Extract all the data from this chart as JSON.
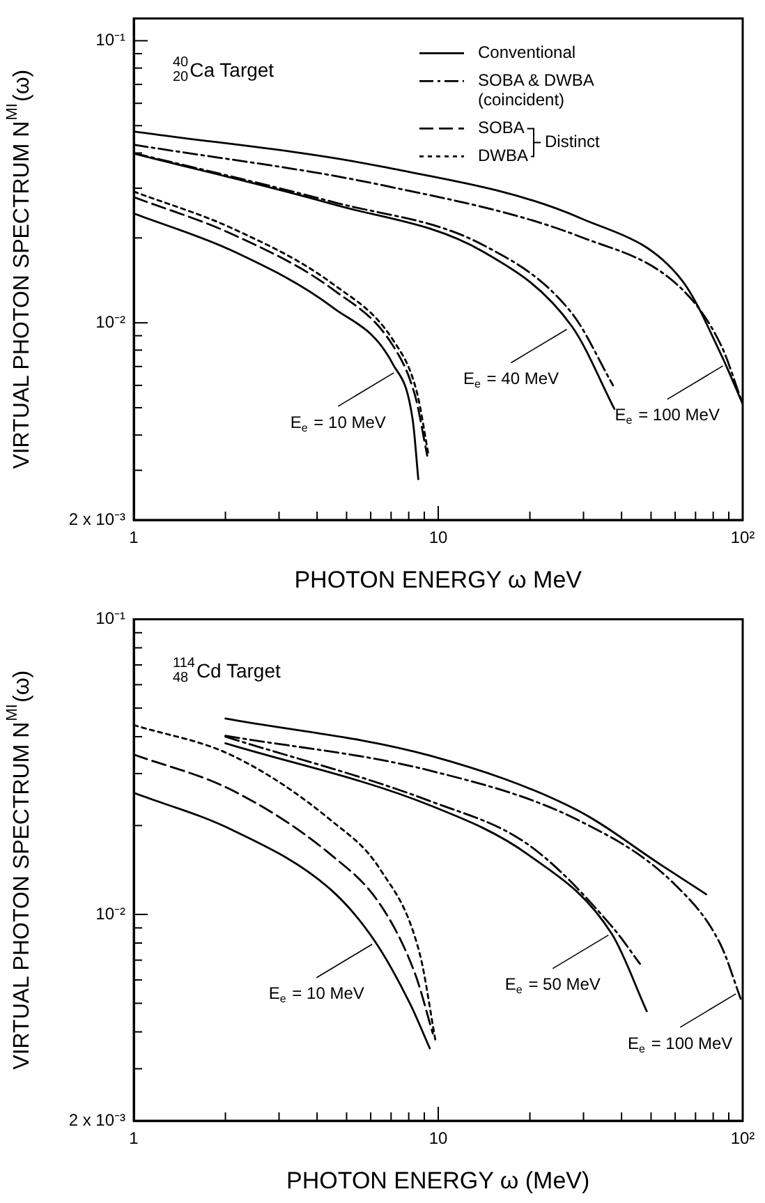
{
  "chart_data": [
    {
      "type": "line",
      "title": "$^{40}$$_{20}$Ca Target",
      "xlabel": "PHOTON ENERGY ω MeV",
      "ylabel": "VIRTUAL PHOTON SPECTRUM N$^{MI}$(ω)",
      "log": "xy",
      "grid": false,
      "legend": "top right",
      "xlim": [
        1,
        100
      ],
      "ylim": [
        0.002,
        0.12
      ],
      "xticks": [
        {
          "value": 1,
          "label": "1"
        },
        {
          "value": 2,
          "label": null
        },
        {
          "value": 3,
          "label": null
        },
        {
          "value": 4,
          "label": null
        },
        {
          "value": 5,
          "label": null
        },
        {
          "value": 6,
          "label": null
        },
        {
          "value": 7,
          "label": null
        },
        {
          "value": 8,
          "label": null
        },
        {
          "value": 9,
          "label": null
        },
        {
          "value": 10,
          "label": "10"
        },
        {
          "value": 20,
          "label": null
        },
        {
          "value": 30,
          "label": null
        },
        {
          "value": 40,
          "label": null
        },
        {
          "value": 50,
          "label": null
        },
        {
          "value": 60,
          "label": null
        },
        {
          "value": 70,
          "label": null
        },
        {
          "value": 80,
          "label": null
        },
        {
          "value": 90,
          "label": null
        },
        {
          "value": 100,
          "label": "10²"
        }
      ],
      "yticks": [
        {
          "value": 0.002,
          "label": "2 x 10⁻³"
        },
        {
          "value": 0.003,
          "label": null
        },
        {
          "value": 0.004,
          "label": null
        },
        {
          "value": 0.005,
          "label": null
        },
        {
          "value": 0.006,
          "label": null
        },
        {
          "value": 0.007,
          "label": null
        },
        {
          "value": 0.008,
          "label": null
        },
        {
          "value": 0.009,
          "label": null
        },
        {
          "value": 0.01,
          "label": "10⁻²"
        },
        {
          "value": 0.02,
          "label": null
        },
        {
          "value": 0.03,
          "label": null
        },
        {
          "value": 0.04,
          "label": null
        },
        {
          "value": 0.05,
          "label": null
        },
        {
          "value": 0.06,
          "label": null
        },
        {
          "value": 0.07,
          "label": null
        },
        {
          "value": 0.08,
          "label": null
        },
        {
          "value": 0.09,
          "label": null
        },
        {
          "value": 0.1,
          "label": "10⁻¹"
        }
      ],
      "series": [
        {
          "name": "Conventional",
          "type": "line",
          "color": "#000000",
          "line_style": "solid",
          "x": [
            1,
            2.13,
            4.52,
            7.1,
            8.25,
            8.6
          ],
          "values": [
            0.0244,
            0.0179,
            0.0113,
            0.00713,
            0.0045,
            0.00279
          ]
        },
        {
          "name": "SOBA & DWBA (coincident)",
          "type": "line",
          "color": "#000000",
          "line_style": "dashdot",
          "x": [
            1,
            6.6,
            29.6,
            63,
            85,
            100
          ],
          "values": [
            0.0428,
            0.0307,
            0.0201,
            0.0132,
            0.0083,
            0.00515
          ]
        },
        {
          "name": "SOBA",
          "type": "line",
          "color": "#000000",
          "line_style": "dashed",
          "x": [
            1,
            2.13,
            4.52,
            7.1,
            8.4,
            9.2
          ],
          "values": [
            0.0279,
            0.0205,
            0.0131,
            0.0083,
            0.0055,
            0.00338
          ]
        },
        {
          "name": "DWBA",
          "type": "line",
          "color": "#000000",
          "line_style": "dotted",
          "x": [
            1,
            2.13,
            4.52,
            7.1,
            8.5,
            9.3
          ],
          "values": [
            0.0292,
            0.0215,
            0.0137,
            0.0087,
            0.0057,
            0.00338
          ]
        },
        {
          "color": "#000000",
          "line_style": "solid",
          "x": [
            1,
            4.52,
            14,
            27.5,
            37.9
          ],
          "values": [
            0.0398,
            0.0263,
            0.0179,
            0.0097,
            0.00495
          ]
        },
        {
          "color": "#000000",
          "line_style": "dashdot",
          "x": [
            1,
            4.52,
            14,
            27.5,
            37.5
          ],
          "values": [
            0.04,
            0.0268,
            0.0189,
            0.0108,
            0.006
          ]
        },
        {
          "color": "#000000",
          "line_style": "solid",
          "x": [
            1,
            6.6,
            29.6,
            63,
            85,
            100
          ],
          "values": [
            0.0477,
            0.0357,
            0.0234,
            0.0142,
            0.0077,
            0.00515
          ]
        }
      ],
      "annotations": [
        {
          "text": "E$_{e}$ = 10 MeV",
          "x": 7.3,
          "y": 0.0068
        },
        {
          "text": "E$_{e}$ = 40 MeV",
          "x": 27,
          "y": 0.0097
        },
        {
          "text": "E$_{e}$ = 100 MeV",
          "x": 88,
          "y": 0.0072
        },
        "Distinct"
      ]
    },
    {
      "type": "line",
      "title": "$^{114}$$_{48}$Cd Target",
      "xlabel": "PHOTON ENERGY ω (MeV)",
      "ylabel": "VIRTUAL PHOTON SPECTRUM N$^{MI}$(ω)",
      "log": "xy",
      "grid": false,
      "legend": false,
      "xlim": [
        1,
        100
      ],
      "ylim": [
        0.002,
        0.1
      ],
      "xticks": [
        {
          "value": 1,
          "label": "1"
        },
        {
          "value": 2,
          "label": null
        },
        {
          "value": 3,
          "label": null
        },
        {
          "value": 4,
          "label": null
        },
        {
          "value": 5,
          "label": null
        },
        {
          "value": 6,
          "label": null
        },
        {
          "value": 7,
          "label": null
        },
        {
          "value": 8,
          "label": null
        },
        {
          "value": 9,
          "label": null
        },
        {
          "value": 10,
          "label": "10"
        },
        {
          "value": 20,
          "label": null
        },
        {
          "value": 30,
          "label": null
        },
        {
          "value": 40,
          "label": null
        },
        {
          "value": 50,
          "label": null
        },
        {
          "value": 60,
          "label": null
        },
        {
          "value": 70,
          "label": null
        },
        {
          "value": 80,
          "label": null
        },
        {
          "value": 90,
          "label": null
        },
        {
          "value": 100,
          "label": "10²"
        }
      ],
      "yticks": [
        {
          "value": 0.002,
          "label": "2 x 10⁻³"
        },
        {
          "value": 0.003,
          "label": null
        },
        {
          "value": 0.004,
          "label": null
        },
        {
          "value": 0.005,
          "label": null
        },
        {
          "value": 0.006,
          "label": null
        },
        {
          "value": 0.007,
          "label": null
        },
        {
          "value": 0.008,
          "label": null
        },
        {
          "value": 0.009,
          "label": null
        },
        {
          "value": 0.01,
          "label": "10⁻²"
        },
        {
          "value": 0.02,
          "label": null
        },
        {
          "value": 0.03,
          "label": null
        },
        {
          "value": 0.04,
          "label": null
        },
        {
          "value": 0.05,
          "label": null
        },
        {
          "value": 0.06,
          "label": null
        },
        {
          "value": 0.07,
          "label": null
        },
        {
          "value": 0.08,
          "label": null
        },
        {
          "value": 0.09,
          "label": null
        },
        {
          "value": 0.1,
          "label": "10⁻¹"
        }
      ],
      "series": [
        {
          "type": "line",
          "color": "#000000",
          "line_style": "solid",
          "x": [
            1,
            2.11,
            4.45,
            6.2,
            8.08,
            9.38
          ],
          "values": [
            0.0258,
            0.0193,
            0.0121,
            0.0081,
            0.00498,
            0.00352
          ]
        },
        {
          "type": "line",
          "color": "#000000",
          "line_style": "dashed",
          "x": [
            1,
            2.11,
            4.45,
            6.45,
            8.4,
            9.6
          ],
          "values": [
            0.0348,
            0.0263,
            0.0159,
            0.0108,
            0.00628,
            0.00395
          ]
        },
        {
          "type": "line",
          "color": "#000000",
          "line_style": "dotted",
          "x": [
            1,
            2.11,
            4.45,
            6.45,
            8.7,
            9.8
          ],
          "values": [
            0.0438,
            0.0345,
            0.0208,
            0.0142,
            0.00734,
            0.00372
          ]
        },
        {
          "type": "line",
          "color": "#000000",
          "line_style": "solid",
          "x": [
            2,
            9.4,
            19.8,
            37.2,
            48.4
          ],
          "values": [
            0.038,
            0.0234,
            0.0159,
            0.00857,
            0.0047
          ]
        },
        {
          "type": "line",
          "color": "#000000",
          "line_style": "dashdot",
          "x": [
            2,
            9.4,
            19.8,
            37.2,
            46
          ],
          "values": [
            0.04,
            0.0242,
            0.0172,
            0.0091,
            0.0068
          ]
        },
        {
          "type": "line",
          "color": "#000000",
          "line_style": "solid",
          "x": [
            2,
            9.4,
            28.7,
            54,
            75.9
          ],
          "values": [
            0.0461,
            0.0345,
            0.0225,
            0.0147,
            0.0117
          ]
        },
        {
          "type": "line",
          "color": "#000000",
          "line_style": "dashdot",
          "x": [
            2,
            9.4,
            28.7,
            60,
            84.6,
            98.5
          ],
          "values": [
            0.0403,
            0.0307,
            0.0209,
            0.0126,
            0.0079,
            0.00518
          ]
        }
      ],
      "annotations": [
        {
          "text": "E$_{e}$ = 10 MeV",
          "x": 6.2,
          "y": 0.0081
        },
        {
          "text": "E$_{e}$ = 50 MeV",
          "x": 37,
          "y": 0.0087
        },
        {
          "text": "E$_{e}$ = 100 MeV",
          "x": 97,
          "y": 0.0055
        }
      ]
    }
  ]
}
